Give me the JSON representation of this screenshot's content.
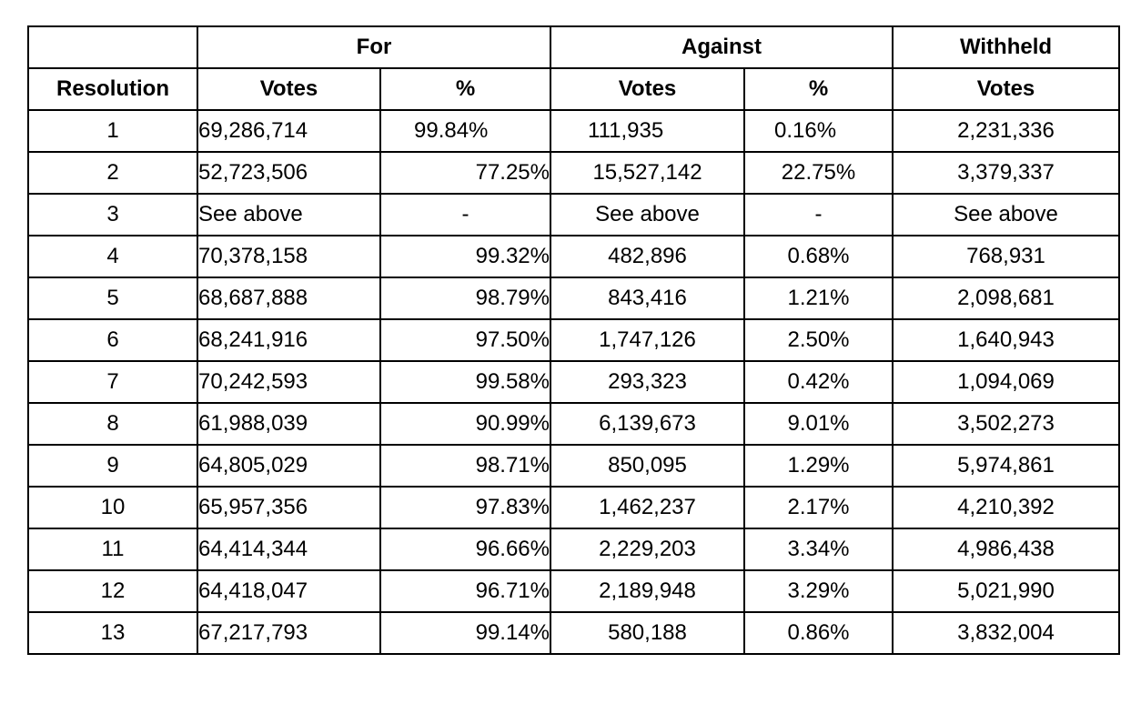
{
  "table": {
    "group_headers": {
      "blank": "",
      "for": "For",
      "against": "Against",
      "withheld": "Withheld"
    },
    "sub_headers": {
      "resolution": "Resolution",
      "for_votes": "Votes",
      "for_pct": "%",
      "against_votes": "Votes",
      "against_pct": "%",
      "withheld_votes": "Votes"
    },
    "rows": [
      {
        "resolution": "1",
        "for_votes": "69,286,714",
        "for_pct": "99.84%",
        "against_votes": "111,935",
        "against_pct": "0.16%",
        "withheld_votes": "2,231,336"
      },
      {
        "resolution": "2",
        "for_votes": "52,723,506",
        "for_pct": "77.25%",
        "against_votes": "15,527,142",
        "against_pct": "22.75%",
        "withheld_votes": "3,379,337"
      },
      {
        "resolution": "3",
        "for_votes": "See above",
        "for_pct": "-",
        "against_votes": "See above",
        "against_pct": "-",
        "withheld_votes": "See above"
      },
      {
        "resolution": "4",
        "for_votes": "70,378,158",
        "for_pct": "99.32%",
        "against_votes": "482,896",
        "against_pct": "0.68%",
        "withheld_votes": "768,931"
      },
      {
        "resolution": "5",
        "for_votes": "68,687,888",
        "for_pct": "98.79%",
        "against_votes": "843,416",
        "against_pct": "1.21%",
        "withheld_votes": "2,098,681"
      },
      {
        "resolution": "6",
        "for_votes": "68,241,916",
        "for_pct": "97.50%",
        "against_votes": "1,747,126",
        "against_pct": "2.50%",
        "withheld_votes": "1,640,943"
      },
      {
        "resolution": "7",
        "for_votes": "70,242,593",
        "for_pct": "99.58%",
        "against_votes": "293,323",
        "against_pct": "0.42%",
        "withheld_votes": "1,094,069"
      },
      {
        "resolution": "8",
        "for_votes": "61,988,039",
        "for_pct": "90.99%",
        "against_votes": "6,139,673",
        "against_pct": "9.01%",
        "withheld_votes": "3,502,273"
      },
      {
        "resolution": "9",
        "for_votes": "64,805,029",
        "for_pct": "98.71%",
        "against_votes": "850,095",
        "against_pct": "1.29%",
        "withheld_votes": "5,974,861"
      },
      {
        "resolution": "10",
        "for_votes": "65,957,356",
        "for_pct": "97.83%",
        "against_votes": "1,462,237",
        "against_pct": "2.17%",
        "withheld_votes": "4,210,392"
      },
      {
        "resolution": "11",
        "for_votes": "64,414,344",
        "for_pct": "96.66%",
        "against_votes": "2,229,203",
        "against_pct": "3.34%",
        "withheld_votes": "4,986,438"
      },
      {
        "resolution": "12",
        "for_votes": "64,418,047",
        "for_pct": "96.71%",
        "against_votes": "2,189,948",
        "against_pct": "3.29%",
        "withheld_votes": "5,021,990"
      },
      {
        "resolution": "13",
        "for_votes": "67,217,793",
        "for_pct": "99.14%",
        "against_votes": "580,188",
        "against_pct": "0.86%",
        "withheld_votes": "3,832,004"
      }
    ]
  }
}
